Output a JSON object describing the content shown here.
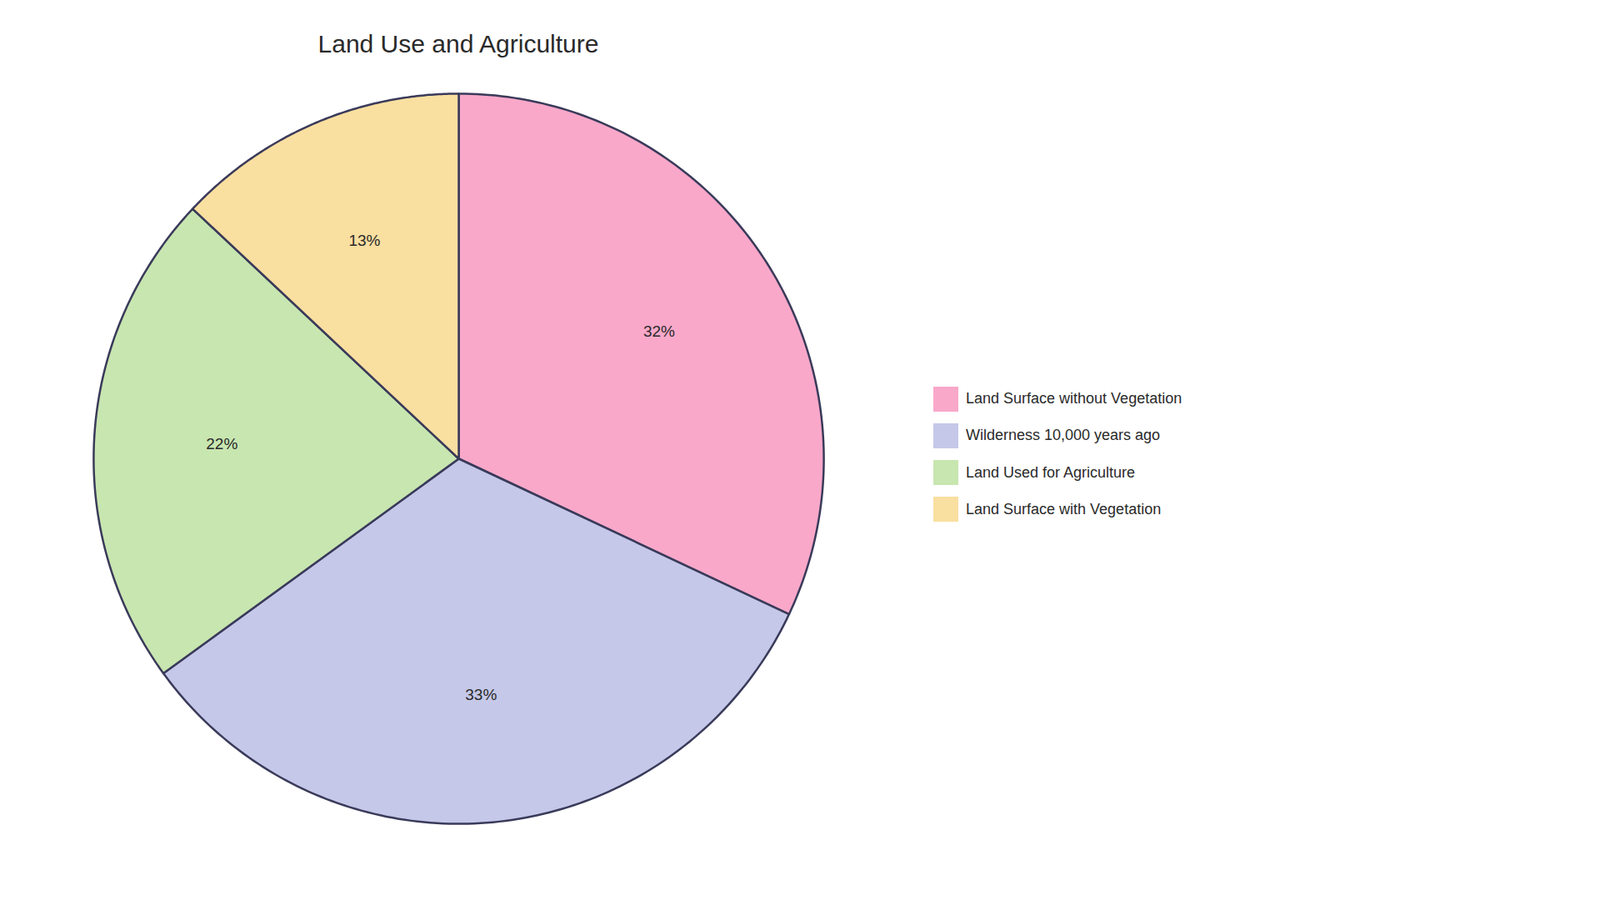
{
  "chart_data": {
    "type": "pie",
    "title": "Land Use and Agriculture",
    "categories": [
      "Land Surface without Vegetation",
      "Wilderness 10,000 years ago",
      "Land Used for Agriculture",
      "Land Surface with Vegetation"
    ],
    "values": [
      32,
      33,
      22,
      13
    ],
    "value_labels": [
      "32%",
      "33%",
      "22%",
      "13%"
    ],
    "colors": [
      "#F9A8C9",
      "#C5C8E8",
      "#C8E6B0",
      "#F9DFA0"
    ],
    "data_labels": true,
    "legend": "right"
  }
}
